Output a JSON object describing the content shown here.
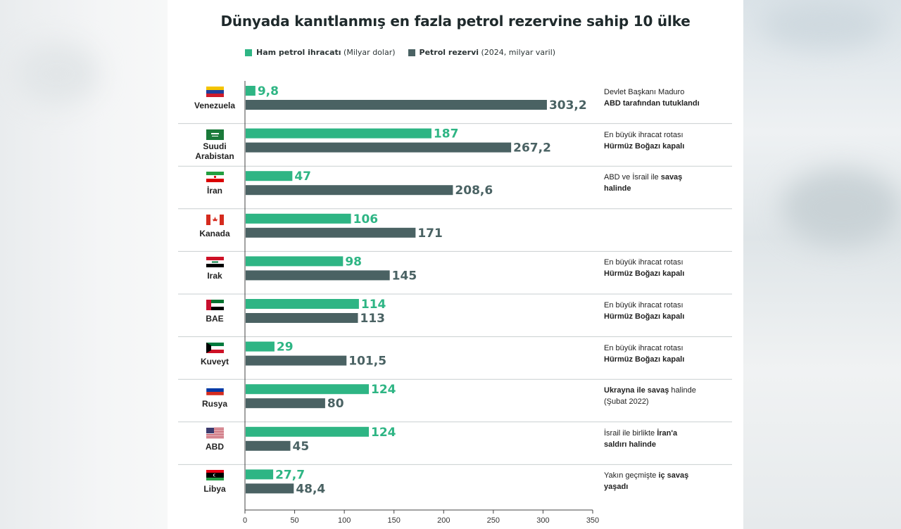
{
  "title": "Dünyada kanıtlanmış en fazla petrol rezervine sahip 10 ülke",
  "colors": {
    "export": "#2eb584",
    "reserve": "#4a6263",
    "axis": "#444444",
    "divider": "#c9cfd0"
  },
  "chart_data": {
    "type": "bar",
    "orientation": "horizontal",
    "title": "Dünyada kanıtlanmış en fazla petrol rezervine sahip 10 ülke",
    "categories": [
      "Venezuela",
      "Suudi Arabistan",
      "İran",
      "Kanada",
      "Irak",
      "BAE",
      "Kuveyt",
      "Rusya",
      "ABD",
      "Libya"
    ],
    "category_display": [
      [
        "Venezuela"
      ],
      [
        "Suudi",
        "Arabistan"
      ],
      [
        "İran"
      ],
      [
        "Kanada"
      ],
      [
        "Irak"
      ],
      [
        "BAE"
      ],
      [
        "Kuveyt"
      ],
      [
        "Rusya"
      ],
      [
        "ABD"
      ],
      [
        "Libya"
      ]
    ],
    "series": [
      {
        "name": "Ham petrol ihracatı",
        "unit": "(Milyar dolar)",
        "values": [
          9.8,
          187,
          47,
          106,
          98,
          114,
          29,
          124,
          124,
          27.7
        ],
        "labels": [
          "9,8",
          "187",
          "47",
          "106",
          "98",
          "114",
          "29",
          "124",
          "124",
          "27,7"
        ]
      },
      {
        "name": "Petrol rezervi",
        "unit": "(2024, milyar varil)",
        "values": [
          303.2,
          267.2,
          208.6,
          171,
          145,
          113,
          101.5,
          80,
          45,
          48.4
        ],
        "labels": [
          "303,2",
          "267,2",
          "208,6",
          "171",
          "145",
          "113",
          "101,5",
          "80",
          "45",
          "48,4"
        ]
      }
    ],
    "xlim": [
      0,
      350
    ],
    "xticks": [
      0,
      50,
      100,
      150,
      200,
      250,
      300,
      350
    ],
    "legend_position": "top",
    "grid": false
  },
  "notes": [
    [
      [
        {
          "t": "Devlet Başkanı Maduro",
          "b": false
        }
      ],
      [
        {
          "t": "ABD tarafından tutuklandı",
          "b": true
        }
      ]
    ],
    [
      [
        {
          "t": "En büyük ihracat rotası",
          "b": false
        }
      ],
      [
        {
          "t": "Hürmüz Boğazı kapalı",
          "b": true
        }
      ]
    ],
    [
      [
        {
          "t": "ABD ve İsrail ile ",
          "b": false
        },
        {
          "t": "savaş",
          "b": true
        }
      ],
      [
        {
          "t": "halinde",
          "b": true
        }
      ]
    ],
    [],
    [
      [
        {
          "t": "En büyük ihracat rotası",
          "b": false
        }
      ],
      [
        {
          "t": "Hürmüz Boğazı kapalı",
          "b": true
        }
      ]
    ],
    [
      [
        {
          "t": "En büyük ihracat rotası",
          "b": false
        }
      ],
      [
        {
          "t": "Hürmüz Boğazı kapalı",
          "b": true
        }
      ]
    ],
    [
      [
        {
          "t": "En büyük ihracat rotası",
          "b": false
        }
      ],
      [
        {
          "t": "Hürmüz Boğazı kapalı",
          "b": true
        }
      ]
    ],
    [
      [
        {
          "t": "Ukrayna ile savaş",
          "b": true
        },
        {
          "t": " halinde",
          "b": false
        }
      ],
      [
        {
          "t": "(Şubat 2022)",
          "b": false
        }
      ]
    ],
    [
      [
        {
          "t": "İsrail ile birlikte ",
          "b": false
        },
        {
          "t": "İran'a",
          "b": true
        }
      ],
      [
        {
          "t": "saldırı halinde",
          "b": true
        }
      ]
    ],
    [
      [
        {
          "t": "Yakın geçmişte ",
          "b": false
        },
        {
          "t": "iç savaş",
          "b": true
        }
      ],
      [
        {
          "t": "yaşadı",
          "b": true
        }
      ]
    ]
  ],
  "flags": [
    "venezuela-flag-icon",
    "saudi-flag-icon",
    "iran-flag-icon",
    "canada-flag-icon",
    "iraq-flag-icon",
    "uae-flag-icon",
    "kuwait-flag-icon",
    "russia-flag-icon",
    "usa-flag-icon",
    "libya-flag-icon"
  ]
}
